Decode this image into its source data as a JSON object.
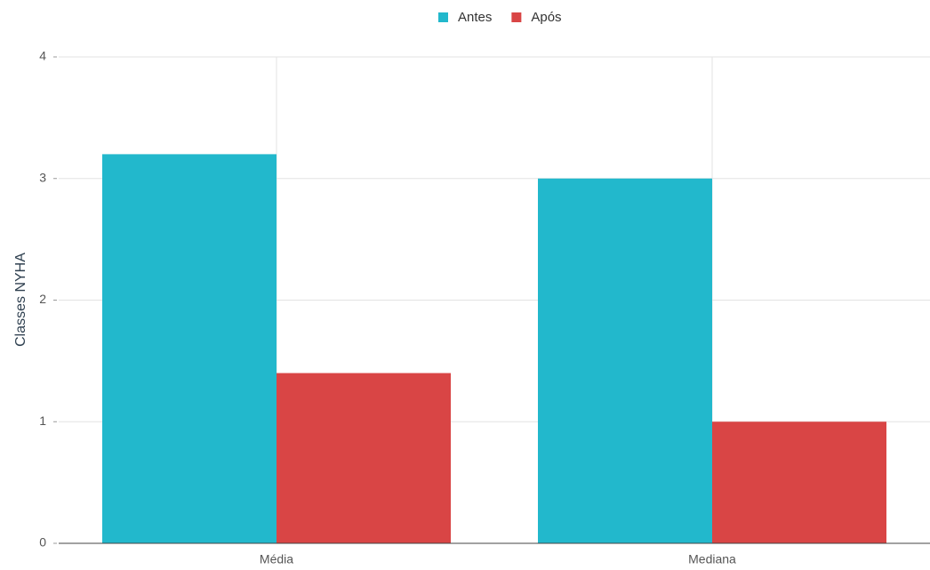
{
  "chart_data": {
    "type": "bar",
    "y_label": "Classes NYHA",
    "categories": [
      "Média",
      "Mediana"
    ],
    "series": [
      {
        "name": "Antes",
        "color": "#22b8cc",
        "values": [
          3.2,
          3.0
        ]
      },
      {
        "name": "Após",
        "color": "#d94545",
        "values": [
          1.4,
          1.0
        ]
      }
    ],
    "ylim": [
      0,
      4
    ],
    "yticks": [
      0,
      1,
      2,
      3,
      4
    ],
    "grid": true,
    "legend": "top"
  }
}
